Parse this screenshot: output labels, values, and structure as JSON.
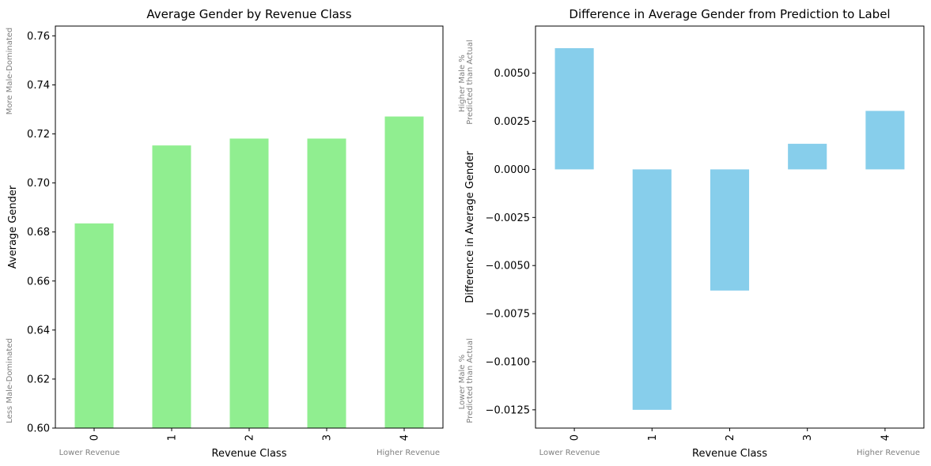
{
  "chart_data": [
    {
      "type": "bar",
      "title": "Average Gender by Revenue Class",
      "xlabel": "Revenue Class",
      "ylabel": "Average Gender",
      "categories": [
        "0",
        "1",
        "2",
        "3",
        "4"
      ],
      "values": [
        0.6835,
        0.7153,
        0.7181,
        0.7181,
        0.7271
      ],
      "ylim": [
        0.6,
        0.764
      ],
      "yticks": [
        0.6,
        0.62,
        0.64,
        0.66,
        0.68,
        0.7,
        0.72,
        0.74,
        0.76
      ],
      "ytick_labels": [
        "0.60",
        "0.62",
        "0.64",
        "0.66",
        "0.68",
        "0.70",
        "0.72",
        "0.74",
        "0.76"
      ],
      "bar_color": "#90EE90",
      "annotations": {
        "x_low": "Lower Revenue",
        "x_high": "Higher Revenue",
        "y_low": "Less Male-Dominated",
        "y_high": "More Male-Dominated"
      }
    },
    {
      "type": "bar",
      "title": "Difference in Average Gender from Prediction to Label",
      "xlabel": "Revenue Class",
      "ylabel": "Difference in Average Gender",
      "categories": [
        "0",
        "1",
        "2",
        "3",
        "4"
      ],
      "values": [
        0.0063,
        -0.0125,
        -0.0063,
        0.00133,
        0.00304
      ],
      "ylim": [
        -0.01345,
        0.00745
      ],
      "yticks": [
        -0.0125,
        -0.01,
        -0.0075,
        -0.005,
        -0.0025,
        0,
        0.0025,
        0.005
      ],
      "ytick_labels": [
        "−0.0125",
        "−0.0100",
        "−0.0075",
        "−0.0050",
        "−0.0025",
        "0.0000",
        "0.0025",
        "0.0050"
      ],
      "bar_color": "#87CEEB",
      "annotations": {
        "x_low": "Lower Revenue",
        "x_high": "Higher Revenue",
        "y_low": [
          "Lower Male %",
          "Predicted than Actual"
        ],
        "y_high": [
          "Higher Male %",
          "Predicted than Actual"
        ]
      }
    }
  ]
}
